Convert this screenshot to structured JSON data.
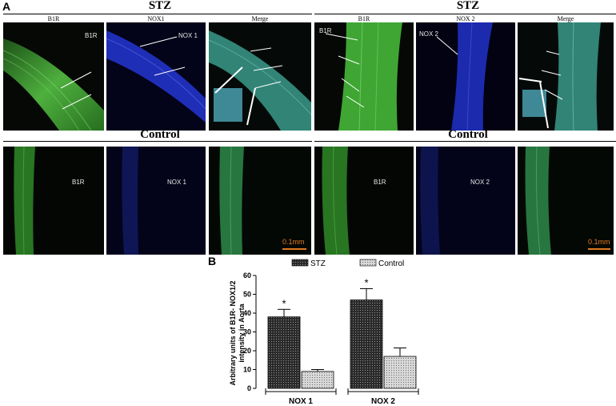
{
  "figure": {
    "panel_a_letter": "A",
    "panel_b_letter": "B",
    "groups": [
      {
        "title": "STZ",
        "control_title": "Control",
        "marker": "NOX 1",
        "columns": [
          "B1R",
          "NOX1",
          "Merge"
        ],
        "control_labels": [
          "B1R",
          "NOX 1",
          ""
        ]
      },
      {
        "title": "STZ",
        "control_title": "Control",
        "marker": "NOX 2",
        "columns": [
          "B1R",
          "NOX 2",
          "Merge"
        ],
        "control_labels": [
          "B1R",
          "NOX 2",
          ""
        ]
      }
    ],
    "inner_labels": {
      "stz_left_b1r": "B1R",
      "stz_left_nox": "NOX 1",
      "stz_right_b1r": "B1R",
      "stz_right_nox": "NOX 2"
    },
    "scale_text": "0.1mm",
    "colors": {
      "green": "#3fa534",
      "blue": "#1a2ab0",
      "merge": "#3a9a8a",
      "scale": "#e07a1f"
    }
  },
  "chart_data": {
    "type": "bar",
    "categories": [
      "NOX 1",
      "NOX 2"
    ],
    "series": [
      {
        "name": "STZ",
        "values": [
          38,
          47
        ],
        "errors": [
          4,
          6
        ],
        "significant": [
          true,
          true
        ]
      },
      {
        "name": "Control",
        "values": [
          9,
          17
        ],
        "errors": [
          1,
          4.5
        ],
        "significant": [
          false,
          false
        ]
      }
    ],
    "ylabel_line1": "Arbitrary units of B1R- NOX1/2",
    "ylabel_line2": "intensity in Aorta",
    "ylim": [
      0,
      60
    ],
    "yticks": [
      0,
      10,
      20,
      30,
      40,
      50,
      60
    ],
    "significance_mark": "*",
    "legend_position": "top"
  }
}
